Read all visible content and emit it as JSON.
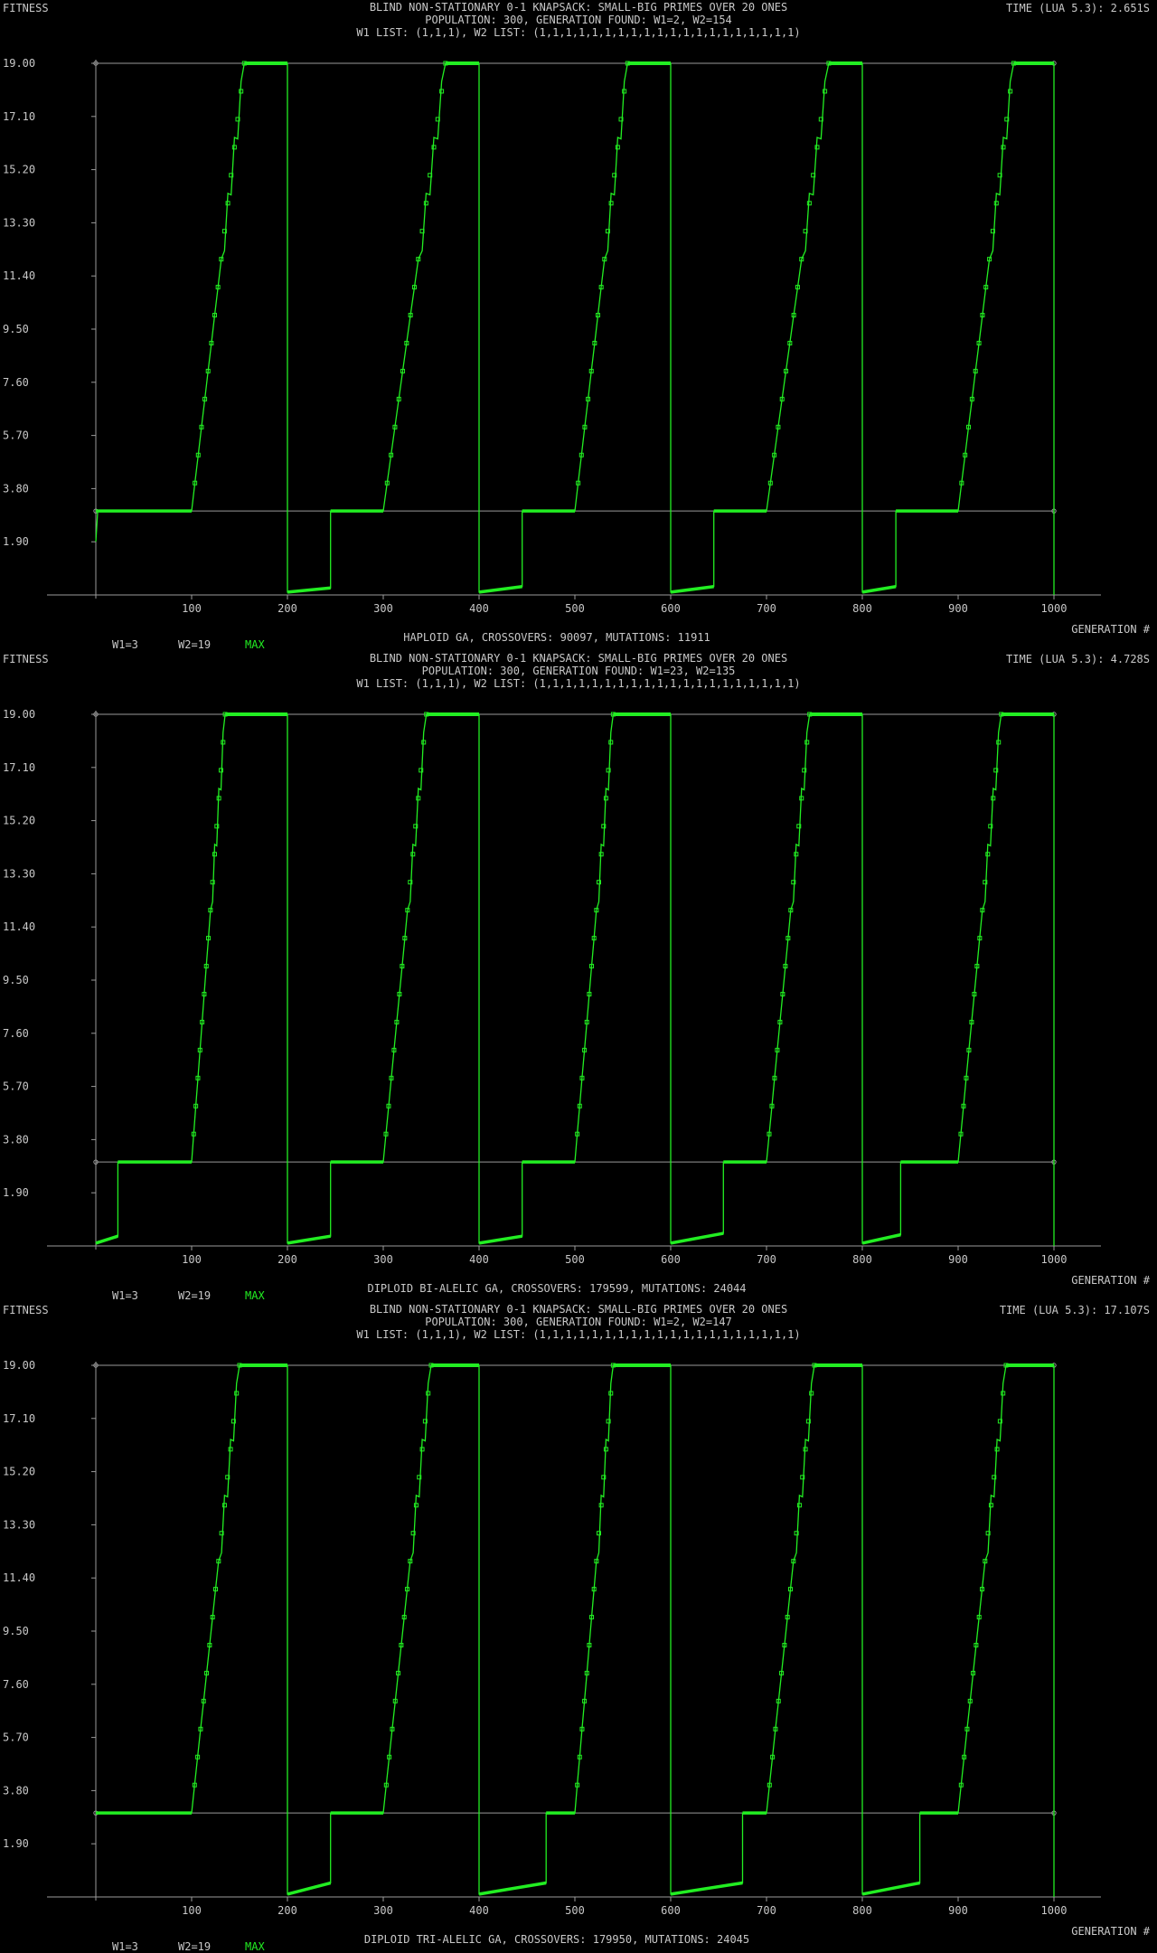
{
  "chart_data": [
    {
      "type": "line",
      "title": "BLIND NON-STATIONARY 0-1 KNAPSACK: SMALL-BIG PRIMES OVER 20 ONES",
      "subtitle_1": "POPULATION: 300, GENERATION FOUND: W1=2, W2=154",
      "subtitle_2": "W1 LIST: (1,1,1), W2 LIST: (1,1,1,1,1,1,1,1,1,1,1,1,1,1,1,1,1,1,1,1)",
      "ylabel": "FITNESS",
      "xlabel": "GENERATION #",
      "time_label": "TIME (LUA 5.3): 2.651S",
      "footer": "HAPLOID GA, CROSSOVERS: 90097, MUTATIONS: 11911",
      "xlim": [
        0,
        1000
      ],
      "ylim": [
        0,
        19
      ],
      "x_ticks": [
        "100",
        "200",
        "300",
        "400",
        "500",
        "600",
        "700",
        "800",
        "900",
        "1000"
      ],
      "y_ticks": [
        "19.00",
        "17.10",
        "15.20",
        "13.30",
        "11.40",
        "9.50",
        "7.60",
        "5.70",
        "3.80",
        "1.90"
      ],
      "grid": false,
      "legend_position": "bottom-left",
      "legend": [
        "W1=3",
        "W2=19",
        "MAX"
      ],
      "series": [
        {
          "name": "W1=3",
          "constant": 3,
          "color": "#9a9a9a"
        },
        {
          "name": "W2=19",
          "constant": 19,
          "color": "#9a9a9a"
        },
        {
          "name": "MAX",
          "color": "#22ee22",
          "low_segments": [
            [
              0,
              1.9,
              3
            ],
            [
              200,
              0.1,
              0.25
            ],
            [
              400,
              0.1,
              0.3
            ],
            [
              600,
              0.1,
              0.3
            ],
            [
              800,
              0.1,
              0.3
            ]
          ],
          "cycles": [
            {
              "start": 0,
              "rise_start": 100,
              "rise_end": 155,
              "plateau_end": 200
            },
            {
              "start": 200,
              "rise_start": 300,
              "rise_end": 365,
              "plateau_end": 400
            },
            {
              "start": 400,
              "rise_start": 500,
              "rise_end": 555,
              "plateau_end": 600
            },
            {
              "start": 600,
              "rise_start": 700,
              "rise_end": 765,
              "plateau_end": 800
            },
            {
              "start": 800,
              "rise_start": 900,
              "rise_end": 958,
              "plateau_end": 1000
            }
          ],
          "low_jumps": [
            null,
            245,
            445,
            645,
            835
          ]
        }
      ]
    },
    {
      "type": "line",
      "title": "BLIND NON-STATIONARY 0-1 KNAPSACK: SMALL-BIG PRIMES OVER 20 ONES",
      "subtitle_1": "POPULATION: 300, GENERATION FOUND: W1=23, W2=135",
      "subtitle_2": "W1 LIST: (1,1,1), W2 LIST: (1,1,1,1,1,1,1,1,1,1,1,1,1,1,1,1,1,1,1,1)",
      "ylabel": "FITNESS",
      "xlabel": "GENERATION #",
      "time_label": "TIME (LUA 5.3): 4.728S",
      "footer": "DIPLOID BI-ALELIC GA, CROSSOVERS: 179599, MUTATIONS: 24044",
      "xlim": [
        0,
        1000
      ],
      "ylim": [
        0,
        19
      ],
      "x_ticks": [
        "100",
        "200",
        "300",
        "400",
        "500",
        "600",
        "700",
        "800",
        "900",
        "1000"
      ],
      "y_ticks": [
        "19.00",
        "17.10",
        "15.20",
        "13.30",
        "11.40",
        "9.50",
        "7.60",
        "5.70",
        "3.80",
        "1.90"
      ],
      "grid": false,
      "legend_position": "bottom-left",
      "legend": [
        "W1=3",
        "W2=19",
        "MAX"
      ],
      "series": [
        {
          "name": "W1=3",
          "constant": 3,
          "color": "#9a9a9a"
        },
        {
          "name": "W2=19",
          "constant": 19,
          "color": "#9a9a9a"
        },
        {
          "name": "MAX",
          "color": "#22ee22",
          "low_segments": [
            [
              0,
              0.1,
              0.35
            ],
            [
              200,
              0.1,
              0.35
            ],
            [
              400,
              0.1,
              0.35
            ],
            [
              600,
              0.1,
              0.45
            ],
            [
              800,
              0.1,
              0.4
            ]
          ],
          "cycles": [
            {
              "start": 0,
              "rise_start": 100,
              "rise_end": 135,
              "plateau_end": 200
            },
            {
              "start": 200,
              "rise_start": 300,
              "rise_end": 345,
              "plateau_end": 400
            },
            {
              "start": 400,
              "rise_start": 500,
              "rise_end": 540,
              "plateau_end": 600
            },
            {
              "start": 600,
              "rise_start": 700,
              "rise_end": 745,
              "plateau_end": 800
            },
            {
              "start": 800,
              "rise_start": 900,
              "rise_end": 945,
              "plateau_end": 1000
            }
          ],
          "low_jumps": [
            23,
            245,
            445,
            655,
            840
          ]
        }
      ]
    },
    {
      "type": "line",
      "title": "BLIND NON-STATIONARY 0-1 KNAPSACK: SMALL-BIG PRIMES OVER 20 ONES",
      "subtitle_1": "POPULATION: 300, GENERATION FOUND: W1=2, W2=147",
      "subtitle_2": "W1 LIST: (1,1,1), W2 LIST: (1,1,1,1,1,1,1,1,1,1,1,1,1,1,1,1,1,1,1,1)",
      "ylabel": "FITNESS",
      "xlabel": "GENERATION #",
      "time_label": "TIME (LUA 5.3): 17.107S",
      "footer": "DIPLOID TRI-ALELIC GA, CROSSOVERS: 179950, MUTATIONS: 24045",
      "xlim": [
        0,
        1000
      ],
      "ylim": [
        0,
        19
      ],
      "x_ticks": [
        "100",
        "200",
        "300",
        "400",
        "500",
        "600",
        "700",
        "800",
        "900",
        "1000"
      ],
      "y_ticks": [
        "19.00",
        "17.10",
        "15.20",
        "13.30",
        "11.40",
        "9.50",
        "7.60",
        "5.70",
        "3.80",
        "1.90"
      ],
      "grid": false,
      "legend_position": "bottom-left",
      "legend": [
        "W1=3",
        "W2=19",
        "MAX"
      ],
      "series": [
        {
          "name": "W1=3",
          "constant": 3,
          "color": "#9a9a9a"
        },
        {
          "name": "W2=19",
          "constant": 19,
          "color": "#9a9a9a"
        },
        {
          "name": "MAX",
          "color": "#22ee22",
          "low_segments": [
            [
              0,
              3,
              3
            ],
            [
              200,
              0.1,
              0.5
            ],
            [
              400,
              0.1,
              0.5
            ],
            [
              600,
              0.1,
              0.5
            ],
            [
              800,
              0.1,
              0.5
            ]
          ],
          "cycles": [
            {
              "start": 0,
              "rise_start": 100,
              "rise_end": 150,
              "plateau_end": 200
            },
            {
              "start": 200,
              "rise_start": 300,
              "rise_end": 350,
              "plateau_end": 400
            },
            {
              "start": 400,
              "rise_start": 500,
              "rise_end": 540,
              "plateau_end": 600
            },
            {
              "start": 600,
              "rise_start": 700,
              "rise_end": 750,
              "plateau_end": 800
            },
            {
              "start": 800,
              "rise_start": 900,
              "rise_end": 950,
              "plateau_end": 1000
            }
          ],
          "low_jumps": [
            null,
            245,
            470,
            675,
            860
          ]
        }
      ]
    }
  ]
}
